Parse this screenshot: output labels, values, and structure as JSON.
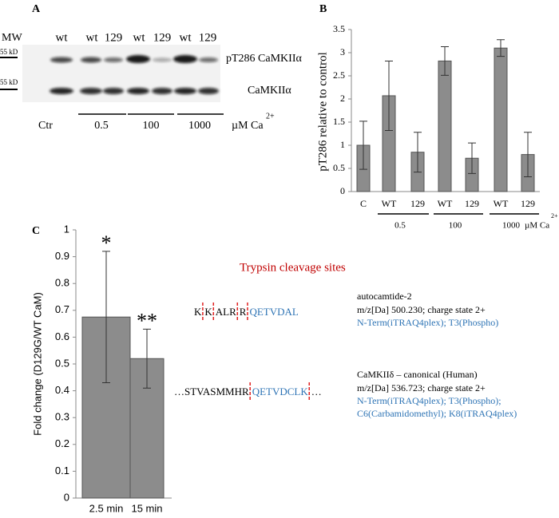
{
  "panel_a": {
    "label": "A",
    "mw": "MW",
    "lanes": [
      "wt",
      "wt",
      "129",
      "wt",
      "129",
      "wt",
      "129"
    ],
    "markers": [
      "55 kD",
      "55 kD"
    ],
    "bands": [
      "pT286 CaMKIIα",
      "CaMKIIα"
    ],
    "groups": [
      "Ctr",
      "0.5",
      "100",
      "1000"
    ],
    "unit": "µM Ca",
    "unit_sup": "2+"
  },
  "chart_data": [
    {
      "type": "bar",
      "panel_label": "B",
      "ylabel": "pT286 relative to control",
      "categories": [
        "C",
        "WT",
        "129",
        "WT",
        "129",
        "WT",
        "129"
      ],
      "values": [
        1.0,
        2.07,
        0.85,
        2.82,
        0.72,
        3.1,
        0.8
      ],
      "errors": [
        0.52,
        0.75,
        0.43,
        0.31,
        0.33,
        0.18,
        0.48
      ],
      "groups": [
        "0.5",
        "100",
        "1000"
      ],
      "unit": "µM Ca",
      "unit_sup": "2+",
      "color": "#8c8c8c",
      "ylim": [
        0,
        3.5
      ],
      "yticks": [
        0,
        0.5,
        1,
        1.5,
        2,
        2.5,
        3,
        3.5
      ]
    },
    {
      "type": "bar",
      "panel_label": "C",
      "ylabel": "Fold change (D129G/WT CaM)",
      "categories": [
        "2.5 min",
        "15 min"
      ],
      "values": [
        0.675,
        0.52
      ],
      "errors": [
        0.245,
        0.11
      ],
      "annotations": [
        "*",
        "**"
      ],
      "color": "#8c8c8c",
      "ylim": [
        0,
        1
      ],
      "yticks": [
        0,
        0.1,
        0.2,
        0.3,
        0.4,
        0.5,
        0.6,
        0.7,
        0.8,
        0.9,
        1
      ]
    }
  ],
  "diagram": {
    "title": "Trypsin cleavage sites",
    "peptides": [
      {
        "left": [
          "K",
          "K",
          "ALR",
          "R"
        ],
        "right": "QETVDAL",
        "name": "autocamtide-2",
        "mass": "m/z[Da] 500.230; charge state 2+",
        "mods": [
          "N-Term(iTRAQ4plex); T3(Phospho)"
        ]
      },
      {
        "left": [
          "…STVASMMHR"
        ],
        "right": "QETVDCLK",
        "tail": "…",
        "name": "CaMKIIδ – canonical (Human)",
        "mass": "m/z[Da] 536.723; charge state 2+",
        "mods": [
          "N-Term(iTRAQ4plex); T3(Phospho);",
          "C6(Carbamidomethyl); K8(iTRAQ4plex)"
        ]
      }
    ]
  }
}
